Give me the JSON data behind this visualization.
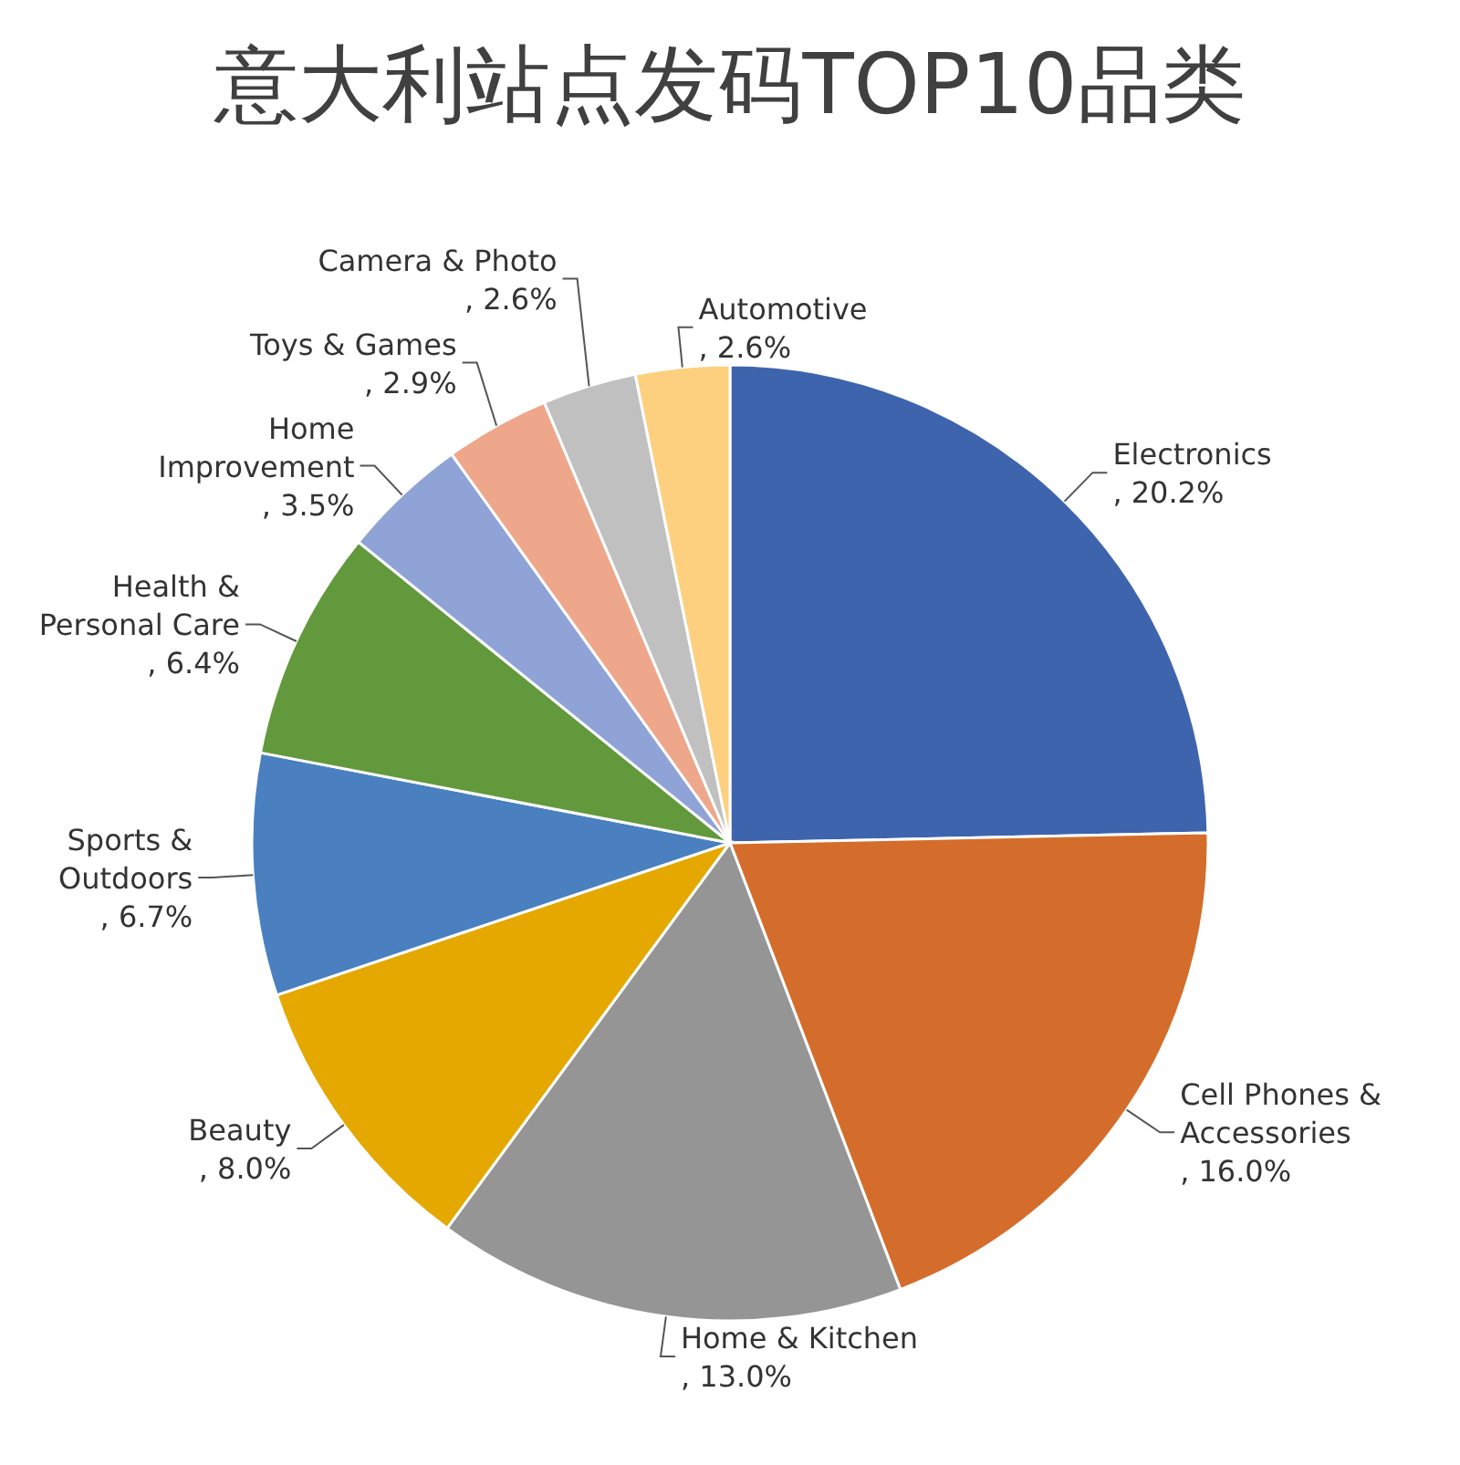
{
  "chart_data": {
    "type": "pie",
    "title": "意大利站点发码TOP10品类",
    "categories": [
      "Electronics",
      "Cell Phones & Accessories",
      "Home & Kitchen",
      "Beauty",
      "Sports & Outdoors",
      "Health & Personal Care",
      "Home Improvement",
      "Toys & Games",
      "Camera & Photo",
      "Automotive"
    ],
    "values": [
      20.2,
      16.0,
      13.0,
      8.0,
      6.7,
      6.4,
      3.5,
      2.9,
      2.6,
      2.6
    ],
    "colors": [
      "#3f64ae",
      "#d46d2b",
      "#959595",
      "#e5a800",
      "#4a80c0",
      "#62993c",
      "#8fa3d6",
      "#eea78b",
      "#c0c0c0",
      "#fdd080"
    ],
    "value_labels": [
      ", 20.2%",
      ", 16.0%",
      ", 13.0%",
      ", 8.0%",
      ", 6.7%",
      ", 6.4%",
      ", 3.5%",
      ", 2.9%",
      ", 2.6%",
      ", 2.6%"
    ]
  }
}
